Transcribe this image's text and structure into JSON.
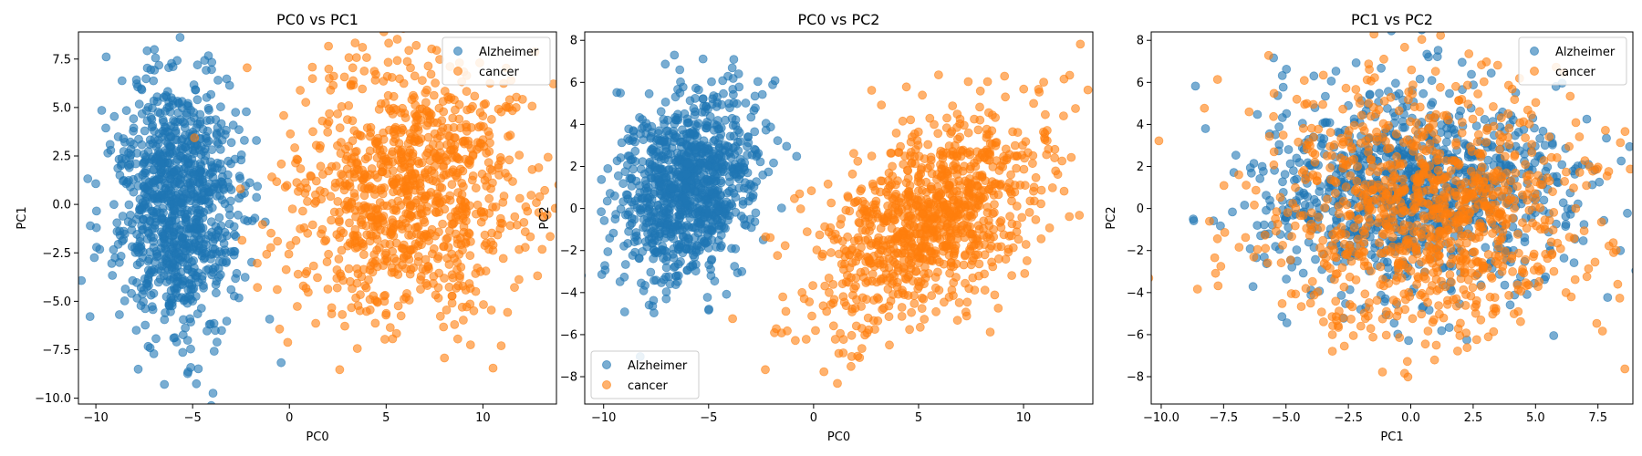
{
  "figure": {
    "background": "#ffffff"
  },
  "colors": {
    "Alzheimer": "#1f77b4",
    "cancer": "#ff7f0e"
  },
  "chart_data": [
    {
      "type": "scatter",
      "title": "PC0 vs PC1",
      "xlabel": "PC0",
      "ylabel": "PC1",
      "xlim": [
        -10.9,
        13.8
      ],
      "ylim": [
        -10.3,
        8.9
      ],
      "xticks": [
        -10,
        -5,
        0,
        5,
        10
      ],
      "yticks": [
        -10.0,
        -7.5,
        -5.0,
        -2.5,
        0.0,
        2.5,
        5.0,
        7.5
      ],
      "yticklabels": [
        "−10.0",
        "−7.5",
        "−5.0",
        "−2.5",
        "0.0",
        "2.5",
        "5.0",
        "7.5"
      ],
      "xticklabels": [
        "−10",
        "−5",
        "0",
        "5",
        "10"
      ],
      "legend": "top-right",
      "series": [
        {
          "name": "Alzheimer",
          "cluster": {
            "cx": -5.8,
            "cy": 0.0,
            "sx": 1.6,
            "sy": 3.3,
            "n": 1000,
            "rot": 0.0
          }
        },
        {
          "name": "cancer",
          "cluster": {
            "cx": 6.0,
            "cy": 0.8,
            "sx": 3.2,
            "sy": 3.4,
            "n": 1000,
            "rot": 0.0
          }
        }
      ]
    },
    {
      "type": "scatter",
      "title": "PC0 vs PC2",
      "xlabel": "PC0",
      "ylabel": "PC2",
      "xlim": [
        -10.9,
        13.3
      ],
      "ylim": [
        -9.3,
        8.4
      ],
      "xticks": [
        -10,
        -5,
        0,
        5,
        10
      ],
      "xticklabels": [
        "−10",
        "−5",
        "0",
        "5",
        "10"
      ],
      "yticks": [
        -8,
        -6,
        -4,
        -2,
        0,
        2,
        4,
        6,
        8
      ],
      "yticklabels": [
        "−8",
        "−6",
        "−4",
        "−2",
        "0",
        "2",
        "4",
        "6",
        "8"
      ],
      "legend": "bottom-left",
      "series": [
        {
          "name": "Alzheimer",
          "cluster": {
            "cx": -6.0,
            "cy": 1.0,
            "sx": 1.5,
            "sy": 2.3,
            "n": 1000,
            "rot": -0.35
          }
        },
        {
          "name": "cancer",
          "cluster": {
            "cx": 5.5,
            "cy": -0.5,
            "sx": 3.3,
            "sy": 1.8,
            "n": 1000,
            "rot": 0.75
          }
        }
      ]
    },
    {
      "type": "scatter",
      "title": "PC1 vs PC2",
      "xlabel": "PC1",
      "ylabel": "PC2",
      "xlim": [
        -10.4,
        8.9
      ],
      "ylim": [
        -9.3,
        8.4
      ],
      "xticks": [
        -10.0,
        -7.5,
        -5.0,
        -2.5,
        0.0,
        2.5,
        5.0,
        7.5
      ],
      "xticklabels": [
        "−10.0",
        "−7.5",
        "−5.0",
        "−2.5",
        "0.0",
        "2.5",
        "5.0",
        "7.5"
      ],
      "yticks": [
        -8,
        -6,
        -4,
        -2,
        0,
        2,
        4,
        6,
        8
      ],
      "yticklabels": [
        "−8",
        "−6",
        "−4",
        "−2",
        "0",
        "2",
        "4",
        "6",
        "8"
      ],
      "legend": "top-right",
      "series": [
        {
          "name": "Alzheimer",
          "cluster": {
            "cx": 0.2,
            "cy": 0.8,
            "sx": 3.3,
            "sy": 2.4,
            "n": 1000,
            "rot": 0.0
          }
        },
        {
          "name": "cancer",
          "cluster": {
            "cx": 0.6,
            "cy": 0.0,
            "sx": 3.3,
            "sy": 3.0,
            "n": 1000,
            "rot": 0.0
          }
        }
      ]
    }
  ]
}
